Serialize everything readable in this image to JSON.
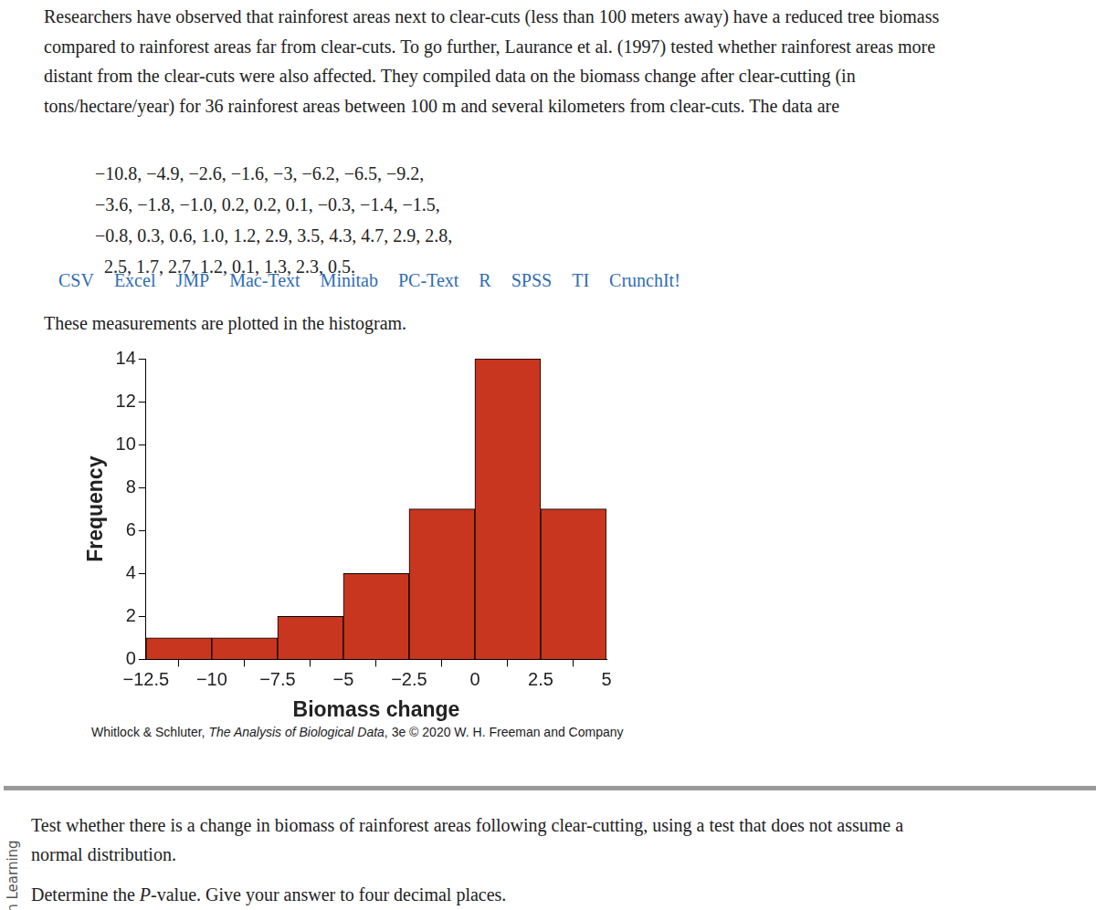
{
  "intro": [
    "Researchers have observed that rainforest areas next to clear-cuts (less than 100 meters away) have a reduced tree biomass",
    "compared to rainforest areas far from clear-cuts. To go further, Laurance et al. (1997) tested whether rainforest areas more",
    "distant from the clear-cuts were also affected. They compiled data on the biomass change after clear-cutting (in",
    "tons/hectare/year) for 36 rainforest areas between 100 m and several kilometers from clear-cuts. The data are"
  ],
  "data_lines": [
    "−10.8, −4.9, −2.6, −1.6, −3, −6.2, −6.5, −9.2,",
    "−3.6, −1.8, −1.0, 0.2, 0.2, 0.1, −0.3, −1.4, −1.5,",
    "−0.8, 0.3, 0.6, 1.0, 1.2, 2.9, 3.5, 4.3, 4.7, 2.9, 2.8,",
    "2.5, 1.7, 2.7, 1.2, 0.1, 1.3, 2.3, 0.5."
  ],
  "links": [
    "CSV",
    "Excel",
    "JMP",
    "Mac-Text",
    "Minitab",
    "PC-Text",
    "R",
    "SPSS",
    "TI",
    "CrunchIt!"
  ],
  "lead": "These measurements are plotted in the histogram.",
  "chart_data": {
    "type": "histogram",
    "bins": [
      -12.5,
      -10,
      -7.5,
      -5,
      -2.5,
      0,
      2.5,
      5
    ],
    "values": [
      1,
      1,
      2,
      4,
      7,
      14,
      7
    ],
    "color": "#c8361f",
    "x_label": "Biomass change",
    "y_label": "Frequency",
    "xlim": [
      -12.5,
      5
    ],
    "xticks": [
      {
        "value": -12.5,
        "label": "−12.5"
      },
      {
        "value": -10,
        "label": "−10"
      },
      {
        "value": -7.5,
        "label": "−7.5"
      },
      {
        "value": -5,
        "label": "−5"
      },
      {
        "value": -2.5,
        "label": "−2.5"
      },
      0,
      2.5,
      5
    ],
    "ylim": [
      0,
      14
    ],
    "yticks": [
      0,
      2,
      4,
      6,
      8,
      10,
      12,
      14
    ],
    "grid": false
  },
  "credit": "Whitlock & Schluter, The Analysis of Biological Data, 3e © 2020 W. H. Freeman and Company",
  "question": [
    "Test whether there is a change in biomass of rainforest areas following clear-cutting, using a test that does not assume a",
    "normal distribution."
  ],
  "prompt": {
    "before": "Determine the ",
    "italic": "P",
    "after": "-value. Give your answer to four decimal places."
  },
  "side_text": "an Learning"
}
